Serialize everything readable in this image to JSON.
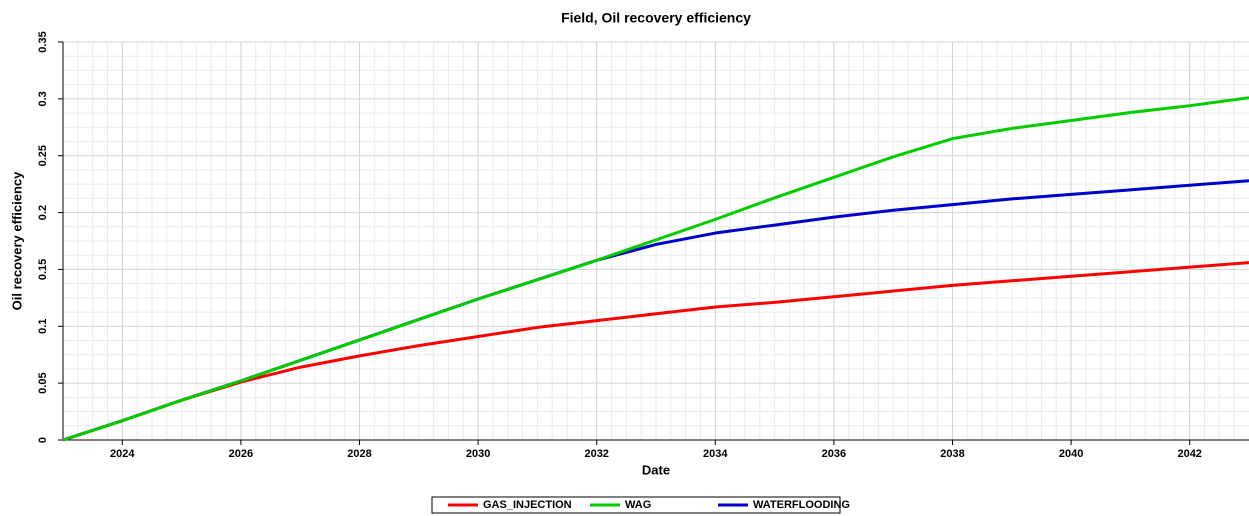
{
  "chart_data": {
    "type": "line",
    "title": "Field, Oil recovery efficiency",
    "xlabel": "Date",
    "ylabel": "Oil recovery efficiency",
    "x": [
      2023,
      2024,
      2025,
      2026,
      2027,
      2028,
      2029,
      2030,
      2031,
      2032,
      2033,
      2034,
      2035,
      2036,
      2037,
      2038,
      2039,
      2040,
      2041,
      2042,
      2043
    ],
    "series": [
      {
        "name": "GAS_INJECTION",
        "color": "#ff0000",
        "values": [
          0,
          0.017,
          0.035,
          0.051,
          0.064,
          0.074,
          0.083,
          0.091,
          0.099,
          0.105,
          0.111,
          0.117,
          0.121,
          0.126,
          0.131,
          0.136,
          0.14,
          0.144,
          0.148,
          0.152,
          0.156
        ]
      },
      {
        "name": "WAG",
        "color": "#00cc00",
        "values": [
          0,
          0.017,
          0.035,
          0.052,
          0.07,
          0.088,
          0.106,
          0.124,
          0.141,
          0.158,
          0.176,
          0.194,
          0.213,
          0.231,
          0.249,
          0.265,
          0.274,
          0.281,
          0.288,
          0.294,
          0.301
        ]
      },
      {
        "name": "WATERFLOODING",
        "color": "#0000cc",
        "values": [
          0,
          0.017,
          0.035,
          0.052,
          0.07,
          0.088,
          0.106,
          0.124,
          0.141,
          0.158,
          0.172,
          0.182,
          0.189,
          0.196,
          0.202,
          0.207,
          0.212,
          0.216,
          0.22,
          0.224,
          0.228
        ]
      }
    ],
    "xlim": [
      2023,
      2043
    ],
    "xticks": [
      2024,
      2026,
      2028,
      2030,
      2032,
      2034,
      2036,
      2038,
      2040,
      2042
    ],
    "ylim": [
      0,
      0.35
    ],
    "yticks": [
      0,
      0.05,
      0.1,
      0.15,
      0.2,
      0.25,
      0.3,
      0.35
    ],
    "grid": true,
    "legend": "bottom"
  }
}
